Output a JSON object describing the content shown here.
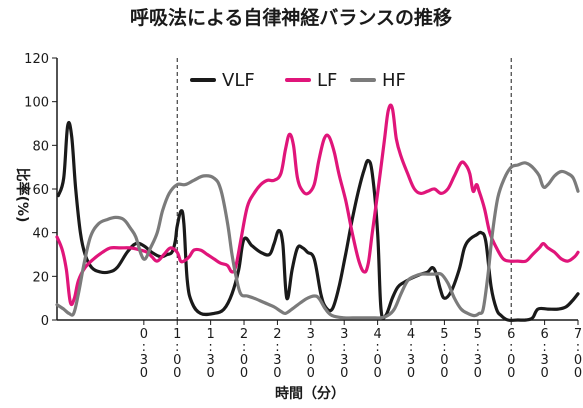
{
  "chart_data": {
    "type": "line",
    "title": "呼吸法による自律神経バランスの推移",
    "xlabel": "時間（分）",
    "ylabel": "比率(%)",
    "ylim": [
      0,
      120
    ],
    "yticks": [
      "0",
      "20",
      "40",
      "60",
      "80",
      "100",
      "120"
    ],
    "xlim": [
      -0.8,
      7.0
    ],
    "xticks": [
      {
        "x": 0.5,
        "label": "0:30"
      },
      {
        "x": 1.0,
        "label": "1:00"
      },
      {
        "x": 1.5,
        "label": "1:30"
      },
      {
        "x": 2.0,
        "label": "2:00"
      },
      {
        "x": 2.5,
        "label": "2:30"
      },
      {
        "x": 3.0,
        "label": "3:00"
      },
      {
        "x": 3.5,
        "label": "3:30"
      },
      {
        "x": 4.0,
        "label": "4:00"
      },
      {
        "x": 4.5,
        "label": "4:30"
      },
      {
        "x": 5.0,
        "label": "5:00"
      },
      {
        "x": 5.5,
        "label": "5:30"
      },
      {
        "x": 6.0,
        "label": "6:00"
      },
      {
        "x": 6.5,
        "label": "6:30"
      },
      {
        "x": 7.0,
        "label": "7:00"
      }
    ],
    "vlines": [
      1.0,
      6.0
    ],
    "legend_position": "top",
    "series": [
      {
        "name": "VLF",
        "color": "#1a1a1a",
        "points": [
          [
            -0.78,
            57
          ],
          [
            -0.7,
            65
          ],
          [
            -0.64,
            89
          ],
          [
            -0.58,
            84
          ],
          [
            -0.52,
            60
          ],
          [
            -0.45,
            40
          ],
          [
            -0.38,
            30
          ],
          [
            -0.28,
            24
          ],
          [
            -0.15,
            22
          ],
          [
            -0.02,
            22
          ],
          [
            0.1,
            24
          ],
          [
            0.25,
            31
          ],
          [
            0.38,
            35
          ],
          [
            0.5,
            34
          ],
          [
            0.62,
            31
          ],
          [
            0.75,
            29
          ],
          [
            0.85,
            30
          ],
          [
            0.92,
            31
          ],
          [
            0.97,
            36
          ],
          [
            1.0,
            43
          ],
          [
            1.06,
            50
          ],
          [
            1.1,
            44
          ],
          [
            1.15,
            18
          ],
          [
            1.22,
            8
          ],
          [
            1.35,
            3
          ],
          [
            1.55,
            3
          ],
          [
            1.7,
            5
          ],
          [
            1.82,
            12
          ],
          [
            1.92,
            23
          ],
          [
            2.0,
            37
          ],
          [
            2.12,
            34
          ],
          [
            2.25,
            31
          ],
          [
            2.38,
            30
          ],
          [
            2.45,
            35
          ],
          [
            2.52,
            41
          ],
          [
            2.58,
            35
          ],
          [
            2.64,
            10
          ],
          [
            2.72,
            23
          ],
          [
            2.8,
            33
          ],
          [
            2.88,
            33
          ],
          [
            2.95,
            31
          ],
          [
            3.05,
            28
          ],
          [
            3.15,
            12
          ],
          [
            3.22,
            6
          ],
          [
            3.32,
            5
          ],
          [
            3.42,
            15
          ],
          [
            3.52,
            30
          ],
          [
            3.62,
            46
          ],
          [
            3.72,
            60
          ],
          [
            3.8,
            69
          ],
          [
            3.86,
            73
          ],
          [
            3.92,
            67
          ],
          [
            4.0,
            40
          ],
          [
            4.05,
            5
          ],
          [
            4.12,
            2
          ],
          [
            4.22,
            10
          ],
          [
            4.3,
            15
          ],
          [
            4.38,
            17
          ],
          [
            4.5,
            19
          ],
          [
            4.65,
            21
          ],
          [
            4.75,
            22
          ],
          [
            4.82,
            24
          ],
          [
            4.88,
            21
          ],
          [
            4.94,
            14
          ],
          [
            5.0,
            10
          ],
          [
            5.1,
            13
          ],
          [
            5.22,
            23
          ],
          [
            5.3,
            33
          ],
          [
            5.38,
            37
          ],
          [
            5.48,
            39
          ],
          [
            5.55,
            40
          ],
          [
            5.62,
            36
          ],
          [
            5.7,
            15
          ],
          [
            5.78,
            5
          ],
          [
            5.85,
            2
          ],
          [
            5.95,
            0
          ],
          [
            6.1,
            0
          ],
          [
            6.22,
            0
          ],
          [
            6.32,
            1
          ],
          [
            6.4,
            5
          ],
          [
            6.55,
            5
          ],
          [
            6.7,
            5
          ],
          [
            6.82,
            6
          ],
          [
            6.92,
            9
          ],
          [
            7.0,
            12
          ]
        ]
      },
      {
        "name": "LF",
        "color": "#e0157a",
        "points": [
          [
            -0.8,
            38
          ],
          [
            -0.72,
            32
          ],
          [
            -0.66,
            23
          ],
          [
            -0.6,
            8
          ],
          [
            -0.54,
            10
          ],
          [
            -0.48,
            18
          ],
          [
            -0.38,
            24
          ],
          [
            -0.25,
            28
          ],
          [
            -0.12,
            31
          ],
          [
            0.0,
            33
          ],
          [
            0.15,
            33
          ],
          [
            0.3,
            33
          ],
          [
            0.45,
            32
          ],
          [
            0.55,
            31
          ],
          [
            0.62,
            29
          ],
          [
            0.7,
            27
          ],
          [
            0.8,
            30
          ],
          [
            0.9,
            33
          ],
          [
            1.0,
            31
          ],
          [
            1.05,
            27
          ],
          [
            1.1,
            27
          ],
          [
            1.18,
            29
          ],
          [
            1.25,
            32
          ],
          [
            1.35,
            32
          ],
          [
            1.45,
            30
          ],
          [
            1.55,
            28
          ],
          [
            1.65,
            26
          ],
          [
            1.75,
            25
          ],
          [
            1.82,
            22
          ],
          [
            1.88,
            25
          ],
          [
            1.96,
            38
          ],
          [
            2.05,
            52
          ],
          [
            2.15,
            58
          ],
          [
            2.25,
            62
          ],
          [
            2.35,
            64
          ],
          [
            2.45,
            64
          ],
          [
            2.55,
            67
          ],
          [
            2.62,
            78
          ],
          [
            2.68,
            85
          ],
          [
            2.74,
            80
          ],
          [
            2.8,
            65
          ],
          [
            2.88,
            59
          ],
          [
            2.96,
            58
          ],
          [
            3.05,
            62
          ],
          [
            3.12,
            73
          ],
          [
            3.2,
            83
          ],
          [
            3.27,
            84
          ],
          [
            3.35,
            77
          ],
          [
            3.42,
            67
          ],
          [
            3.52,
            55
          ],
          [
            3.62,
            40
          ],
          [
            3.72,
            27
          ],
          [
            3.8,
            22
          ],
          [
            3.86,
            26
          ],
          [
            3.92,
            40
          ],
          [
            4.0,
            58
          ],
          [
            4.1,
            82
          ],
          [
            4.16,
            96
          ],
          [
            4.22,
            97
          ],
          [
            4.28,
            83
          ],
          [
            4.35,
            75
          ],
          [
            4.45,
            67
          ],
          [
            4.55,
            60
          ],
          [
            4.65,
            58
          ],
          [
            4.75,
            59
          ],
          [
            4.85,
            60
          ],
          [
            4.95,
            58
          ],
          [
            5.05,
            60
          ],
          [
            5.15,
            66
          ],
          [
            5.25,
            72
          ],
          [
            5.32,
            71
          ],
          [
            5.38,
            67
          ],
          [
            5.43,
            59
          ],
          [
            5.48,
            62
          ],
          [
            5.52,
            59
          ],
          [
            5.6,
            51
          ],
          [
            5.68,
            40
          ],
          [
            5.78,
            33
          ],
          [
            5.88,
            28
          ],
          [
            5.98,
            27
          ],
          [
            6.1,
            27
          ],
          [
            6.22,
            27
          ],
          [
            6.32,
            30
          ],
          [
            6.42,
            33
          ],
          [
            6.48,
            35
          ],
          [
            6.55,
            33
          ],
          [
            6.65,
            31
          ],
          [
            6.75,
            28
          ],
          [
            6.85,
            27
          ],
          [
            6.95,
            29
          ],
          [
            7.0,
            31
          ]
        ]
      },
      {
        "name": "HF",
        "color": "#7b7b7b",
        "points": [
          [
            -0.8,
            7
          ],
          [
            -0.7,
            5
          ],
          [
            -0.62,
            3
          ],
          [
            -0.55,
            3
          ],
          [
            -0.48,
            12
          ],
          [
            -0.4,
            25
          ],
          [
            -0.3,
            38
          ],
          [
            -0.18,
            44
          ],
          [
            -0.05,
            46
          ],
          [
            0.08,
            47
          ],
          [
            0.2,
            46
          ],
          [
            0.3,
            42
          ],
          [
            0.38,
            38
          ],
          [
            0.46,
            30
          ],
          [
            0.52,
            28
          ],
          [
            0.6,
            33
          ],
          [
            0.7,
            40
          ],
          [
            0.78,
            50
          ],
          [
            0.88,
            58
          ],
          [
            1.0,
            62
          ],
          [
            1.12,
            62
          ],
          [
            1.25,
            64
          ],
          [
            1.4,
            66
          ],
          [
            1.55,
            65
          ],
          [
            1.65,
            60
          ],
          [
            1.75,
            45
          ],
          [
            1.82,
            30
          ],
          [
            1.88,
            20
          ],
          [
            1.95,
            12
          ],
          [
            2.05,
            11
          ],
          [
            2.15,
            10
          ],
          [
            2.3,
            8
          ],
          [
            2.45,
            6
          ],
          [
            2.55,
            4
          ],
          [
            2.62,
            3
          ],
          [
            2.72,
            5
          ],
          [
            2.85,
            8
          ],
          [
            2.95,
            10
          ],
          [
            3.05,
            11
          ],
          [
            3.12,
            10
          ],
          [
            3.22,
            5
          ],
          [
            3.32,
            2
          ],
          [
            3.5,
            1
          ],
          [
            3.7,
            1
          ],
          [
            3.9,
            1
          ],
          [
            4.05,
            1
          ],
          [
            4.15,
            2
          ],
          [
            4.25,
            5
          ],
          [
            4.35,
            12
          ],
          [
            4.45,
            18
          ],
          [
            4.55,
            20
          ],
          [
            4.65,
            21
          ],
          [
            4.75,
            21
          ],
          [
            4.85,
            21
          ],
          [
            4.95,
            21
          ],
          [
            5.05,
            17
          ],
          [
            5.15,
            10
          ],
          [
            5.25,
            5
          ],
          [
            5.35,
            3
          ],
          [
            5.45,
            2
          ],
          [
            5.52,
            3
          ],
          [
            5.58,
            5
          ],
          [
            5.65,
            20
          ],
          [
            5.72,
            40
          ],
          [
            5.8,
            56
          ],
          [
            5.9,
            65
          ],
          [
            6.0,
            70
          ],
          [
            6.1,
            71
          ],
          [
            6.2,
            72
          ],
          [
            6.28,
            71
          ],
          [
            6.35,
            69
          ],
          [
            6.42,
            66
          ],
          [
            6.48,
            61
          ],
          [
            6.55,
            62
          ],
          [
            6.65,
            66
          ],
          [
            6.75,
            68
          ],
          [
            6.85,
            67
          ],
          [
            6.93,
            65
          ],
          [
            7.0,
            59
          ]
        ]
      }
    ]
  }
}
